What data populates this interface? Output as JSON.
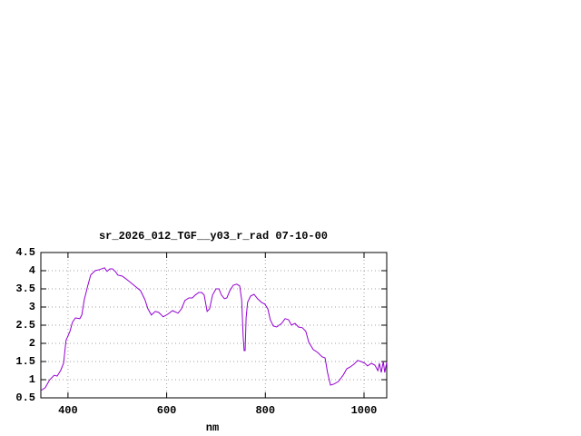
{
  "chart_data": {
    "type": "line",
    "title": "sr_2026_012_TGF__y03_r_rad 07-10-00",
    "x_label": "nm",
    "x": [
      345,
      354,
      363,
      372,
      378,
      385,
      391,
      396,
      404,
      409,
      415,
      424,
      428,
      433,
      440,
      446,
      455,
      464,
      474,
      479,
      485,
      490,
      496,
      501,
      510,
      520,
      529,
      538,
      547,
      556,
      562,
      569,
      577,
      584,
      593,
      602,
      612,
      623,
      630,
      637,
      645,
      652,
      658,
      665,
      671,
      676,
      682,
      687,
      693,
      700,
      706,
      711,
      717,
      722,
      728,
      735,
      742,
      748,
      752,
      755,
      757,
      759,
      761,
      764,
      770,
      777,
      784,
      792,
      799,
      805,
      810,
      816,
      823,
      833,
      840,
      847,
      853,
      860,
      867,
      875,
      882,
      888,
      897,
      906,
      915,
      921,
      926,
      932,
      939,
      948,
      958,
      965,
      972,
      980,
      987,
      994,
      1002,
      1007,
      1015,
      1022,
      1028,
      1031,
      1035,
      1039,
      1042,
      1046
    ],
    "series": [
      {
        "name": "r_rad",
        "color": "#9400d3",
        "values": [
          0.7,
          0.78,
          1.0,
          1.12,
          1.1,
          1.25,
          1.45,
          2.08,
          2.33,
          2.58,
          2.7,
          2.68,
          2.78,
          3.2,
          3.58,
          3.88,
          4.0,
          4.03,
          4.08,
          3.98,
          4.05,
          4.05,
          3.98,
          3.88,
          3.85,
          3.75,
          3.65,
          3.55,
          3.45,
          3.2,
          2.95,
          2.78,
          2.88,
          2.85,
          2.73,
          2.8,
          2.9,
          2.83,
          2.95,
          3.18,
          3.25,
          3.25,
          3.33,
          3.4,
          3.4,
          3.33,
          2.88,
          2.95,
          3.33,
          3.5,
          3.5,
          3.33,
          3.23,
          3.25,
          3.45,
          3.6,
          3.63,
          3.58,
          3.2,
          2.2,
          1.8,
          1.8,
          2.7,
          3.13,
          3.3,
          3.35,
          3.23,
          3.13,
          3.08,
          2.95,
          2.65,
          2.48,
          2.45,
          2.55,
          2.68,
          2.65,
          2.5,
          2.55,
          2.45,
          2.43,
          2.33,
          2.03,
          1.83,
          1.75,
          1.63,
          1.6,
          1.2,
          0.85,
          0.88,
          0.95,
          1.13,
          1.3,
          1.35,
          1.43,
          1.53,
          1.5,
          1.45,
          1.38,
          1.45,
          1.4,
          1.25,
          1.45,
          1.2,
          1.5,
          1.2,
          1.48
        ]
      }
    ],
    "xlim": [
      345,
      1046
    ],
    "xticks": [
      400,
      600,
      800,
      1000
    ],
    "ylim": [
      0.5,
      4.5
    ],
    "yticks": [
      0.5,
      1,
      1.5,
      2,
      2.5,
      3,
      3.5,
      4,
      4.5
    ],
    "grid": true
  }
}
